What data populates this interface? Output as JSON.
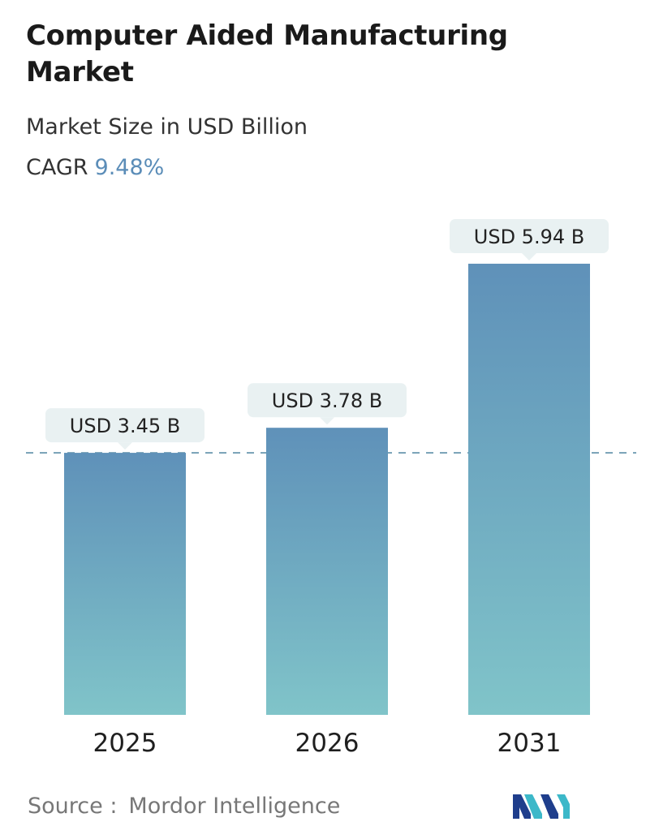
{
  "title": "Computer Aided Manufacturing Market",
  "subtitle": "Market Size in USD Billion",
  "cagr": {
    "label": "CAGR",
    "value": "9.48%"
  },
  "source": {
    "label": "Source :",
    "name": "Mordor Intelligence"
  },
  "colors": {
    "bar_top": "#5f91b9",
    "bar_bottom": "#80c4c9",
    "callout_bg": "#e9f1f2",
    "dashed_line": "#5d8fa8",
    "accent": "#5b8db8"
  },
  "chart_data": {
    "type": "bar",
    "categories": [
      "2025",
      "2026",
      "2031"
    ],
    "values": [
      3.45,
      3.78,
      5.94
    ],
    "data_labels": [
      "USD 3.45 B",
      "USD 3.78 B",
      "USD 5.94 B"
    ],
    "title": "Computer Aided Manufacturing Market",
    "subtitle": "Market Size in USD Billion",
    "reference_line": 3.45,
    "grid": false
  }
}
